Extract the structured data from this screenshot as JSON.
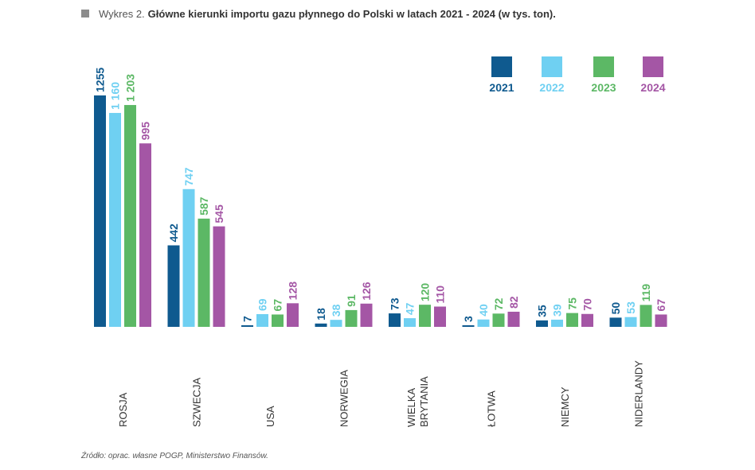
{
  "header": {
    "prefix": "Wykres 2.",
    "title": "Główne kierunki importu gazu płynnego do Polski w latach 2021 - 2024 (w tys. ton)."
  },
  "footer": {
    "source": "Źródło: oprac. własne POGP, Ministerstwo Finansów."
  },
  "chart_data": {
    "type": "bar",
    "title": "Główne kierunki importu gazu płynnego do Polski w latach 2021 - 2024 (w tys. ton).",
    "xlabel": "",
    "ylabel": "",
    "categories": [
      [
        "ROSJA"
      ],
      [
        "SZWECJA"
      ],
      [
        "USA"
      ],
      [
        "NORWEGIA"
      ],
      [
        "WIELKA",
        "BRYTANIA"
      ],
      [
        "ŁOTWA"
      ],
      [
        "NIEMCY"
      ],
      [
        "NIDERLANDY"
      ]
    ],
    "series": [
      {
        "name": "2021",
        "color": "#0f5a8f",
        "values": [
          1255,
          442,
          7,
          18,
          73,
          3,
          35,
          50
        ],
        "labels": [
          "1255",
          "442",
          "7",
          "18",
          "73",
          "3",
          "35",
          "50"
        ]
      },
      {
        "name": "2022",
        "color": "#6fd0f2",
        "values": [
          1160,
          747,
          69,
          38,
          47,
          40,
          39,
          53
        ],
        "labels": [
          "1 160",
          "747",
          "69",
          "38",
          "47",
          "40",
          "39",
          "53"
        ]
      },
      {
        "name": "2023",
        "color": "#5cb865",
        "values": [
          1203,
          587,
          67,
          91,
          120,
          72,
          75,
          119
        ],
        "labels": [
          "1 203",
          "587",
          "67",
          "91",
          "120",
          "72",
          "75",
          "119"
        ]
      },
      {
        "name": "2024",
        "color": "#a456a5",
        "values": [
          995,
          545,
          128,
          126,
          110,
          82,
          70,
          67
        ],
        "labels": [
          "995",
          "545",
          "128",
          "126",
          "110",
          "82",
          "70",
          "67"
        ]
      }
    ],
    "ylim": [
      0,
      1255
    ],
    "grid": false,
    "legend_position": "top-right"
  }
}
